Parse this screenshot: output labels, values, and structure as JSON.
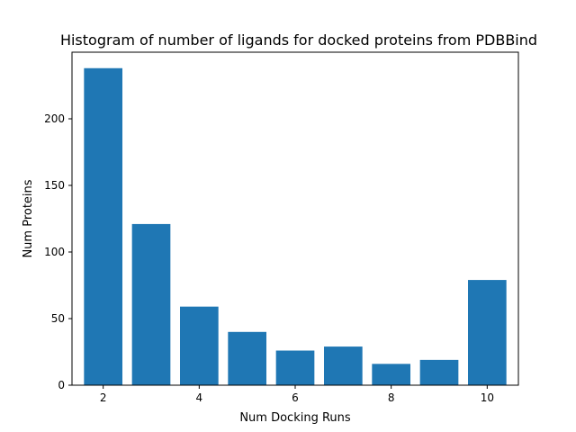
{
  "chart_data": {
    "type": "bar",
    "title": "Histogram of number of ligands for docked proteins from PDBBind",
    "xlabel": "Num Docking Runs",
    "ylabel": "Num Proteins",
    "x": [
      2,
      3,
      4,
      5,
      6,
      7,
      8,
      9,
      10
    ],
    "values": [
      238,
      121,
      59,
      40,
      26,
      29,
      16,
      19,
      79
    ],
    "xlim": [
      1.35,
      10.65
    ],
    "ylim": [
      0,
      250
    ],
    "xticks": [
      2,
      4,
      6,
      8,
      10
    ],
    "yticks": [
      0,
      50,
      100,
      150,
      200
    ],
    "bar_width": 0.8,
    "bar_color": "#1f77b4",
    "grid": false,
    "legend": "none"
  }
}
